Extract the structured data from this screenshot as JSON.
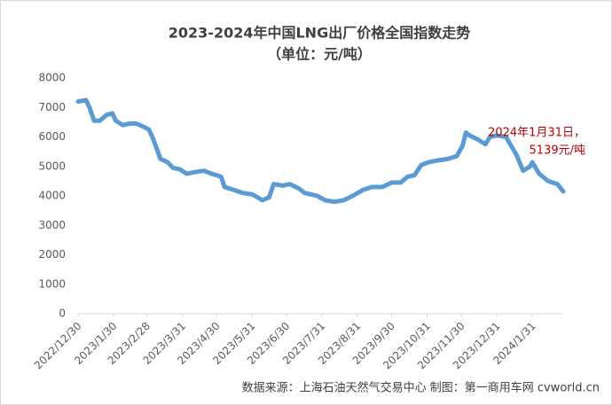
{
  "chart_data": {
    "type": "line",
    "title": "2023-2024年中国LNG出厂价格全国指数走势",
    "subtitle": "（单位：元/吨）",
    "x": [
      "2022/12/30",
      "2023/1/6",
      "2023/1/9",
      "2023/1/13",
      "2023/1/18",
      "2023/1/24",
      "2023/1/29",
      "2023/2/1",
      "2023/2/7",
      "2023/2/13",
      "2023/2/19",
      "2023/2/25",
      "2023/3/2",
      "2023/3/6",
      "2023/3/12",
      "2023/3/18",
      "2023/3/23",
      "2023/3/29",
      "2023/4/4",
      "2023/4/10",
      "2023/4/19",
      "2023/4/26",
      "2023/5/4",
      "2023/5/7",
      "2023/5/15",
      "2023/5/23",
      "2023/5/31",
      "2023/6/5",
      "2023/6/9",
      "2023/6/15",
      "2023/6/19",
      "2023/6/27",
      "2023/7/3",
      "2023/7/11",
      "2023/7/16",
      "2023/7/27",
      "2023/8/3",
      "2023/8/11",
      "2023/8/19",
      "2023/8/27",
      "2023/9/5",
      "2023/9/13",
      "2023/9/22",
      "2023/9/30",
      "2023/10/8",
      "2023/10/14",
      "2023/10/20",
      "2023/10/26",
      "2023/11/2",
      "2023/11/9",
      "2023/11/18",
      "2023/11/26",
      "2023/12/1",
      "2023/12/4",
      "2023/12/7",
      "2023/12/15",
      "2023/12/21",
      "2023/12/25",
      "2023/12/31",
      "2024/1/8",
      "2024/1/11",
      "2024/1/17",
      "2024/1/23",
      "2024/1/29",
      "2024/1/31",
      "2024/2/6",
      "2024/2/14",
      "2024/2/22",
      "2024/2/27"
    ],
    "series": [
      {
        "name": "LNG出厂价格全国指数",
        "color": "#5b9bd5",
        "values": [
          7200,
          7250,
          7000,
          6550,
          6550,
          6750,
          6800,
          6550,
          6400,
          6450,
          6450,
          6350,
          6250,
          5900,
          5250,
          5150,
          4950,
          4900,
          4750,
          4800,
          4850,
          4750,
          4650,
          4300,
          4200,
          4100,
          4050,
          3950,
          3850,
          3950,
          4400,
          4350,
          4400,
          4250,
          4100,
          4000,
          3850,
          3800,
          3850,
          4000,
          4200,
          4300,
          4300,
          4450,
          4450,
          4650,
          4700,
          5050,
          5150,
          5200,
          5250,
          5350,
          5700,
          6150,
          6050,
          5900,
          5750,
          6000,
          6050,
          6000,
          5800,
          5400,
          4850,
          5000,
          5139,
          4750,
          4500,
          4400,
          4150
        ]
      }
    ],
    "xlim": [
      "2022/12/30",
      "2024/2/27"
    ],
    "xticks": [
      "2022/12/30",
      "2023/1/30",
      "2023/2/28",
      "2023/3/31",
      "2023/4/30",
      "2023/5/31",
      "2023/6/30",
      "2023/7/31",
      "2023/8/31",
      "2023/9/30",
      "2023/10/31",
      "2023/11/30",
      "2023/12/31",
      "2024/1/31"
    ],
    "ylim": [
      0,
      8000
    ],
    "yticks": [
      0,
      1000,
      2000,
      3000,
      4000,
      5000,
      6000,
      7000,
      8000
    ],
    "grid": false,
    "annotation": {
      "lines": [
        "2024年1月31日，",
        "5139元/吨"
      ],
      "color": "#c00000"
    },
    "source": "数据来源：上海石油天然气交易中心 制图：第一商用车网 cvworld.cn"
  }
}
